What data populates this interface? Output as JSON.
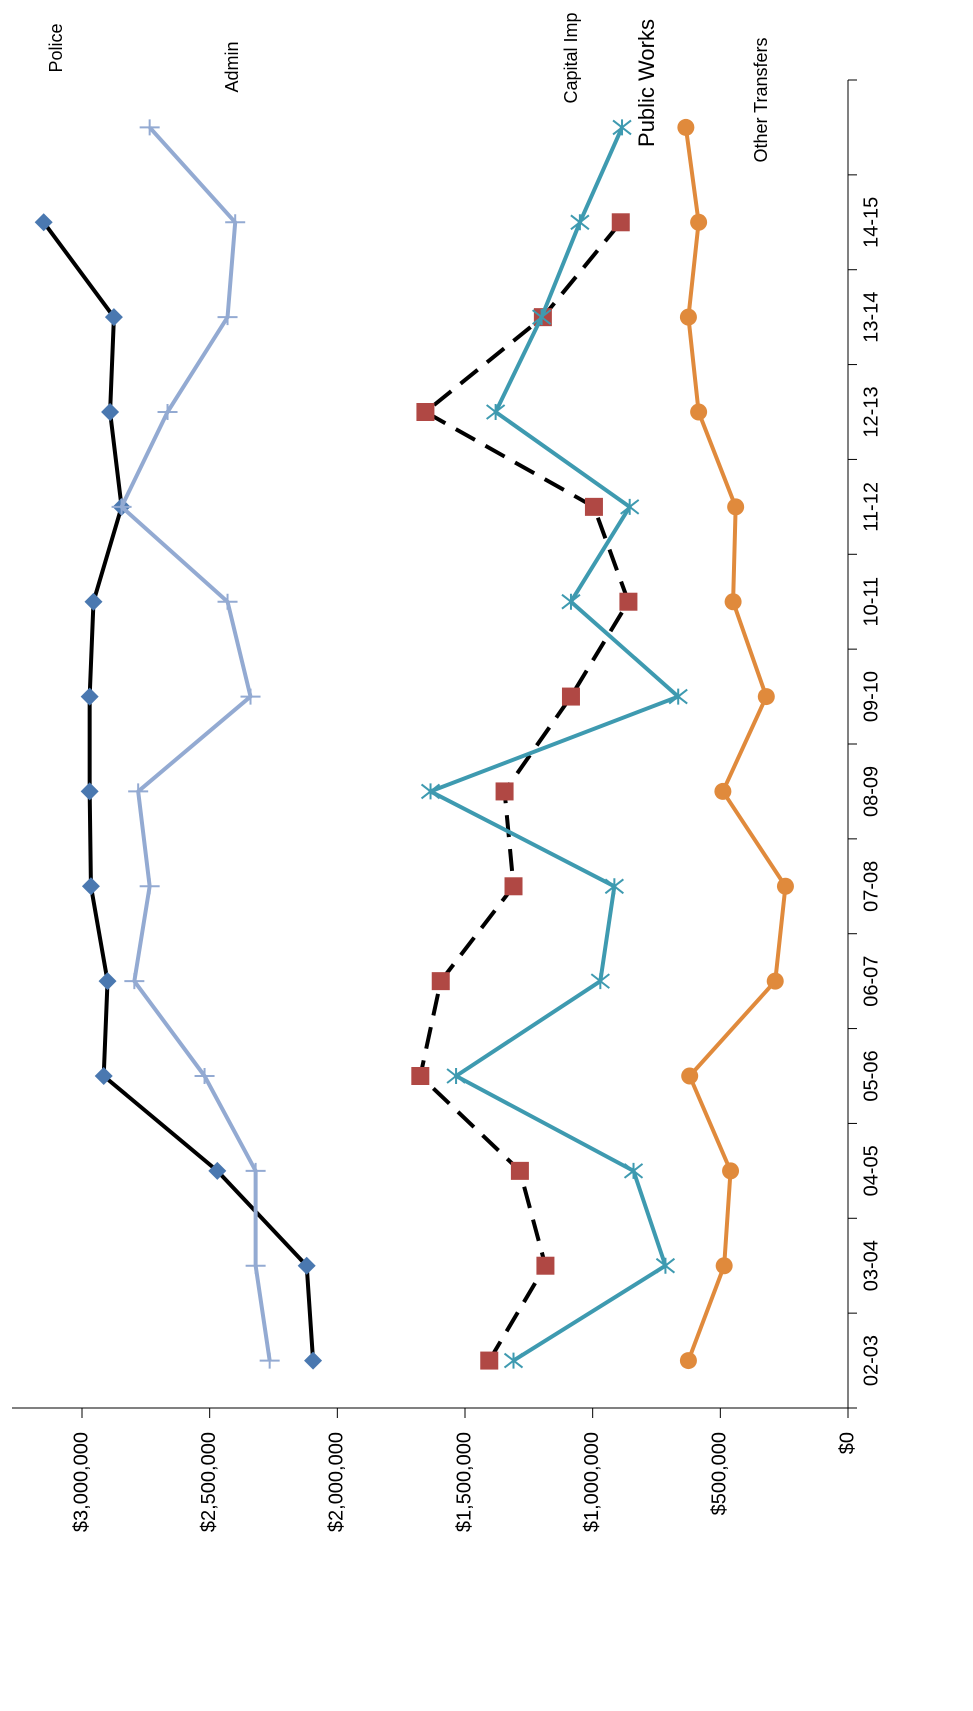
{
  "chart_data": {
    "type": "line",
    "rotation": -90,
    "categories": [
      "02-03",
      "03-04",
      "04-05",
      "05-06",
      "06-07",
      "07-08",
      "08-09",
      "09-10",
      "10-11",
      "11-12",
      "12-13",
      "13-14",
      "14-15",
      null
    ],
    "ylim": [
      0,
      3000000
    ],
    "yticks": [
      {
        "value": 0,
        "label": "$0"
      },
      {
        "value": 500000,
        "label": "$500,000"
      },
      {
        "value": 1000000,
        "label": "$1,000,000"
      },
      {
        "value": 1500000,
        "label": "$1,500,000"
      },
      {
        "value": 2000000,
        "label": "$2,000,000"
      },
      {
        "value": 2500000,
        "label": "$2,500,000"
      },
      {
        "value": 3000000,
        "label": "$3,000,000"
      }
    ],
    "series": [
      {
        "name": "Police",
        "color": "#000000",
        "marker_color": "#4a78b0",
        "marker": "diamond",
        "line_style": "solid",
        "values": [
          2095000,
          2120000,
          2470000,
          2915000,
          2900000,
          2965000,
          2970000,
          2970000,
          2955000,
          2845000,
          2890000,
          2875000,
          3150000,
          null
        ]
      },
      {
        "name": "Admin",
        "color": "#93aad2",
        "marker_color": "#93aad2",
        "marker": "plus",
        "line_style": "solid",
        "values": [
          2265000,
          2320000,
          2320000,
          2520000,
          2795000,
          2735000,
          2780000,
          2340000,
          2430000,
          2845000,
          2665000,
          2430000,
          2400000,
          2735000
        ]
      },
      {
        "name": "Capital Imp",
        "color": "#000000",
        "marker_color": "#b04844",
        "marker": "square",
        "line_style": "dashed",
        "values": [
          1405000,
          1185000,
          1285000,
          1675000,
          1595000,
          1310000,
          1345000,
          1085000,
          860000,
          995000,
          1655000,
          1195000,
          890000,
          null
        ]
      },
      {
        "name": "Public Works",
        "color": "#3e9ab0",
        "marker_color": "#3e9ab0",
        "marker": "star",
        "line_style": "solid",
        "values": [
          1310000,
          715000,
          840000,
          1535000,
          970000,
          915000,
          1635000,
          665000,
          1085000,
          855000,
          1380000,
          1200000,
          1050000,
          885000
        ]
      },
      {
        "name": "Other Transfers",
        "color": "#e08a3c",
        "marker_color": "#e08a3c",
        "marker": "circle",
        "line_style": "solid",
        "values": [
          625000,
          485000,
          460000,
          620000,
          285000,
          245000,
          490000,
          320000,
          450000,
          440000,
          585000,
          625000,
          585000,
          635000
        ]
      }
    ]
  }
}
